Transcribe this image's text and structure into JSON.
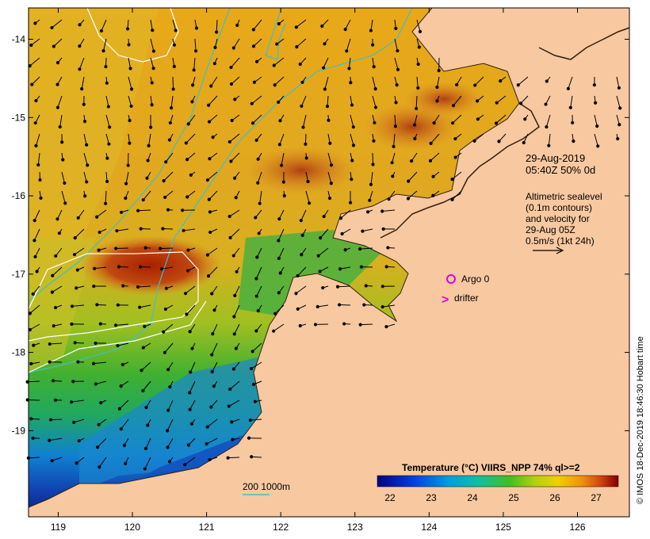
{
  "map": {
    "lon_ticks": [
      "119",
      "120",
      "121",
      "122",
      "123",
      "124",
      "125",
      "126"
    ],
    "lat_ticks": [
      "-14",
      "-15",
      "-16",
      "-17",
      "-18",
      "-19"
    ],
    "lon_range": [
      118.6,
      126.7
    ],
    "lat_range": [
      -13.6,
      -20.1
    ]
  },
  "annotation": {
    "date_line1": "29-Aug-2019",
    "date_line2": "05:40Z  50% 0d",
    "alt_line1": "Altimetric sealevel",
    "alt_line2": "(0.1m contours)",
    "alt_line3": "and velocity for",
    "alt_line4": "29-Aug 05Z",
    "alt_line5": "0.5m/s (1kt 24h)"
  },
  "legend": {
    "argo_label": "Argo 0",
    "drifter_label": "drifter",
    "drifter_symbol": ">",
    "argo_color": "#e000e0",
    "drifter_color": "#e000e0"
  },
  "depth_legend": {
    "label": "200  1000m",
    "color": "#40c0c0"
  },
  "colorbar": {
    "title": "Temperature (°C) VIIRS_NPP 74% ql>=2",
    "ticks": [
      "22",
      "23",
      "24",
      "25",
      "26",
      "27"
    ]
  },
  "credit": "© IMOS 18-Dec-2019 18:46:30 Hobart time",
  "colors": {
    "land": "#f8c8a0",
    "warm": "#e8a018",
    "hot": "#a83008",
    "cool": "#30b040",
    "cold": "#1030a0",
    "contour": "#ffffff",
    "bathy": "#40c0c0"
  }
}
